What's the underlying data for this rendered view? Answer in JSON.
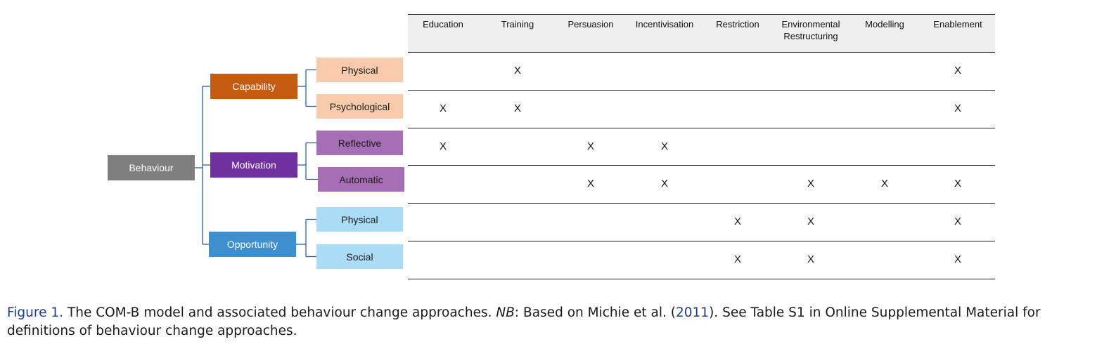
{
  "tree": {
    "root": {
      "label": "Behaviour",
      "color": "#7f7f7f",
      "text_color": "#ffffff"
    },
    "branches": [
      {
        "label": "Capability",
        "color": "#c55a11",
        "text_color": "#ffffff",
        "subs": [
          {
            "label": "Physical",
            "color": "#f8cbad"
          },
          {
            "label": "Psychological",
            "color": "#f8cbad"
          }
        ]
      },
      {
        "label": "Motivation",
        "color": "#7030a0",
        "text_color": "#ffffff",
        "subs": [
          {
            "label": "Reflective",
            "color": "#a66fb5"
          },
          {
            "label": "Automatic",
            "color": "#a66fb5"
          }
        ]
      },
      {
        "label": "Opportunity",
        "color": "#3f8fcf",
        "text_color": "#ffffff",
        "subs": [
          {
            "label": "Physical",
            "color": "#aadcf5"
          },
          {
            "label": "Social",
            "color": "#aadcf5"
          }
        ]
      }
    ],
    "connector_color": "#2e5f99"
  },
  "table": {
    "columns": [
      "Education",
      "Training",
      "Persuasion",
      "Incentivisation",
      "Restriction",
      "Environmental Restructuring",
      "Modelling",
      "Enablement"
    ],
    "mark": "X",
    "rows": [
      {
        "label": "Physical",
        "marks": [
          false,
          true,
          false,
          false,
          false,
          false,
          false,
          true
        ]
      },
      {
        "label": "Psychological",
        "marks": [
          true,
          true,
          false,
          false,
          false,
          false,
          false,
          true
        ]
      },
      {
        "label": "Reflective",
        "marks": [
          true,
          false,
          true,
          true,
          false,
          false,
          false,
          false
        ]
      },
      {
        "label": "Automatic",
        "marks": [
          false,
          false,
          true,
          true,
          false,
          true,
          true,
          true
        ]
      },
      {
        "label": "Physical",
        "marks": [
          false,
          false,
          false,
          false,
          true,
          true,
          false,
          true
        ]
      },
      {
        "label": "Social",
        "marks": [
          false,
          false,
          false,
          false,
          true,
          true,
          false,
          true
        ]
      }
    ]
  },
  "caption": {
    "figure_label": "Figure 1.",
    "text_1": " The COM-B model and associated behaviour change approaches. ",
    "nb_label": "NB",
    "text_2": ": Based on Michie et al. (",
    "ref_year": "2011",
    "text_3": "). See Table S1 in Online Supplemental Material for definitions of behaviour change approaches."
  }
}
